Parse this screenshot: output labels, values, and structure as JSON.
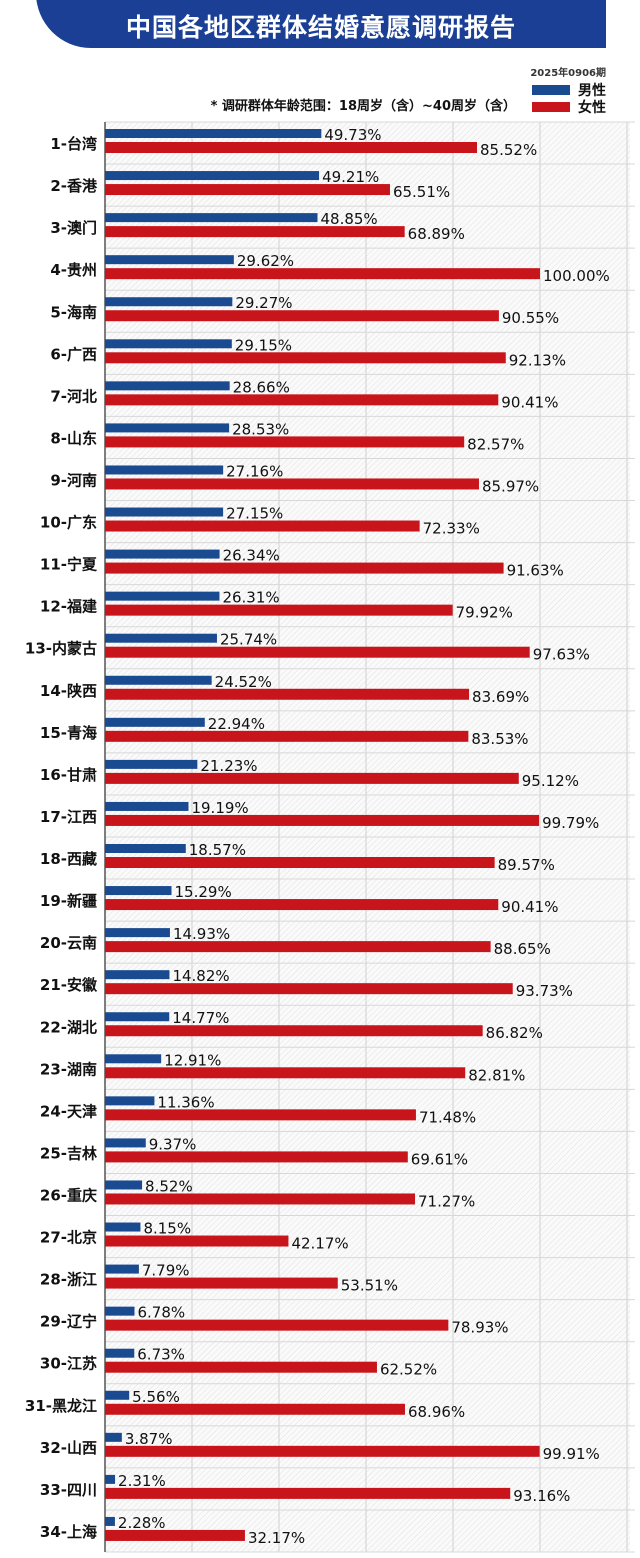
{
  "chart_data": {
    "type": "bar",
    "orientation": "horizontal",
    "title": "中国各地区群体结婚意愿调研报告",
    "subtitle": "2025年0906期",
    "note": "* 调研群体年龄范围：18周岁（含）~40周岁（含）",
    "legend_position": "top-right",
    "xlim": [
      0,
      100
    ],
    "grid": true,
    "categories": [
      "1-台湾",
      "2-香港",
      "3-澳门",
      "4-贵州",
      "5-海南",
      "6-广西",
      "7-河北",
      "8-山东",
      "9-河南",
      "10-广东",
      "11-宁夏",
      "12-福建",
      "13-内蒙古",
      "14-陕西",
      "15-青海",
      "16-甘肃",
      "17-江西",
      "18-西藏",
      "19-新疆",
      "20-云南",
      "21-安徽",
      "22-湖北",
      "23-湖南",
      "24-天津",
      "25-吉林",
      "26-重庆",
      "27-北京",
      "28-浙江",
      "29-辽宁",
      "30-江苏",
      "31-黑龙江",
      "32-山西",
      "33-四川",
      "34-上海"
    ],
    "series": [
      {
        "name": "男性",
        "color": "#1a4a8f",
        "values": [
          49.73,
          49.21,
          48.85,
          29.62,
          29.27,
          29.15,
          28.66,
          28.53,
          27.16,
          27.15,
          26.34,
          26.31,
          25.74,
          24.52,
          22.94,
          21.23,
          19.19,
          18.57,
          15.29,
          14.93,
          14.82,
          14.77,
          12.91,
          11.36,
          9.37,
          8.52,
          8.15,
          7.79,
          6.78,
          6.73,
          5.56,
          3.87,
          2.31,
          2.28
        ]
      },
      {
        "name": "女性",
        "color": "#c8141b",
        "values": [
          85.52,
          65.51,
          68.89,
          100.0,
          90.55,
          92.13,
          90.41,
          82.57,
          85.97,
          72.33,
          91.63,
          79.92,
          97.63,
          83.69,
          83.53,
          95.12,
          99.79,
          89.57,
          90.41,
          88.65,
          93.73,
          86.82,
          82.81,
          71.48,
          69.61,
          71.27,
          42.17,
          53.51,
          78.93,
          62.52,
          68.96,
          99.91,
          93.16,
          32.17
        ]
      }
    ]
  }
}
